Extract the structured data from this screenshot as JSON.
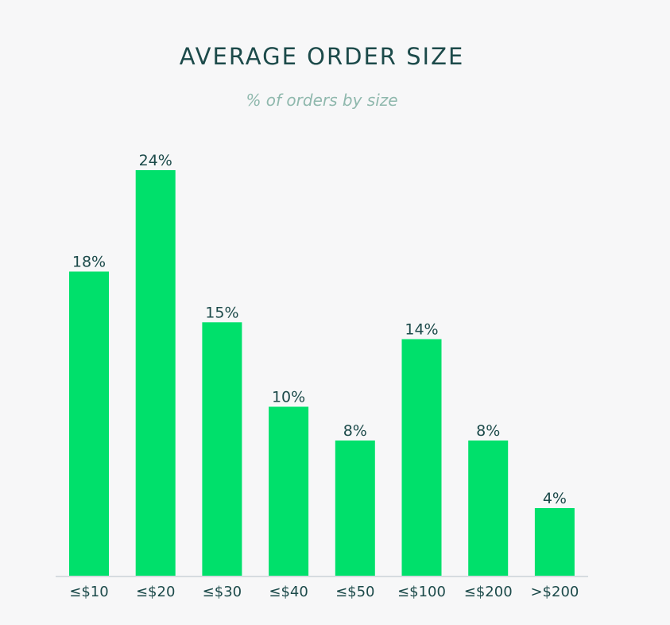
{
  "chart_data": {
    "type": "bar",
    "title": "AVERAGE ORDER SIZE",
    "subtitle": "% of orders by size",
    "categories": [
      "≤$10",
      "≤$20",
      "≤$30",
      "≤$40",
      "≤$50",
      "≤$100",
      "≤$200",
      ">$200"
    ],
    "values": [
      18,
      24,
      15,
      10,
      8,
      14,
      8,
      4
    ],
    "value_suffix": "%",
    "xlabel": "",
    "ylabel": "",
    "ylim": [
      0,
      24
    ],
    "grid": false,
    "legend": "none",
    "colors": {
      "bar": "#00e06b",
      "text": "#1c4a4a",
      "subtitle": "#8fb8ad",
      "axis": "#d6dbe0"
    }
  }
}
